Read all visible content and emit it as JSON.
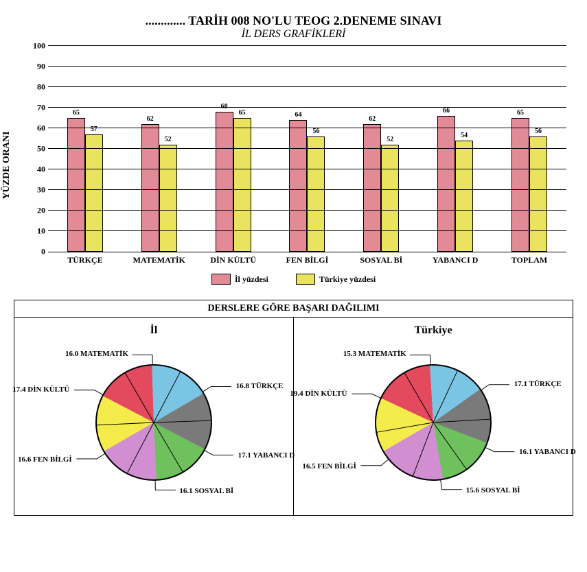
{
  "header": {
    "main_title": "............. TARİH 008 NO'LU TEOG 2.DENEME SINAVI",
    "sub_title": "İL DERS GRAFİKLERİ"
  },
  "bar_chart": {
    "type": "bar",
    "y_label": "YÜZDE ORANI",
    "ylim": [
      0,
      100
    ],
    "ytick_step": 10,
    "categories": [
      "TÜRKÇE",
      "MATEMATİK",
      "DİN KÜLTÜ",
      "FEN BİLGİ",
      "SOSYAL Bİ",
      "YABANCI D",
      "TOPLAM"
    ],
    "series": [
      {
        "name": "İl yüzdesi",
        "color": "#e28a96",
        "values": [
          65,
          62,
          68,
          64,
          62,
          66,
          65
        ]
      },
      {
        "name": "Türkiye yüzdesi",
        "color": "#e9e35d",
        "values": [
          57,
          52,
          65,
          56,
          52,
          54,
          56
        ]
      }
    ],
    "grid_color": "#000000",
    "background_color": "#ffffff",
    "bar_border": "#000000"
  },
  "pie_section": {
    "title": "DERSLERE GÖRE BAŞARI DAĞILIMI",
    "charts": [
      {
        "title": "İl",
        "slices": [
          {
            "label": "16.0 MATEMATİK",
            "value": 16.0,
            "color": "#f4ec4a"
          },
          {
            "label": "16.8 TÜRKÇE",
            "value": 16.8,
            "color": "#e44a5e"
          },
          {
            "label": "17.1 YABANCI D",
            "value": 17.1,
            "color": "#7bc5e4"
          },
          {
            "label": "16.1 SOSYAL Bİ",
            "value": 16.1,
            "color": "#7a7a7a"
          },
          {
            "label": "16.6 FEN BİLGİ",
            "value": 16.6,
            "color": "#6fc15e"
          },
          {
            "label": "17.4 DİN KÜLTÜ",
            "value": 17.4,
            "color": "#d18fd1"
          }
        ]
      },
      {
        "title": "Türkiye",
        "slices": [
          {
            "label": "15.3 MATEMATİK",
            "value": 15.3,
            "color": "#f4ec4a"
          },
          {
            "label": "17.1 TÜRKÇE",
            "value": 17.1,
            "color": "#e44a5e"
          },
          {
            "label": "16.1 YABANCI D",
            "value": 16.1,
            "color": "#7bc5e4"
          },
          {
            "label": "15.6 SOSYAL Bİ",
            "value": 15.6,
            "color": "#7a7a7a"
          },
          {
            "label": "16.5 FEN BİLGİ",
            "value": 16.5,
            "color": "#6fc15e"
          },
          {
            "label": "19.4 DİN KÜLTÜ",
            "value": 19.4,
            "color": "#d18fd1"
          }
        ]
      }
    ]
  }
}
